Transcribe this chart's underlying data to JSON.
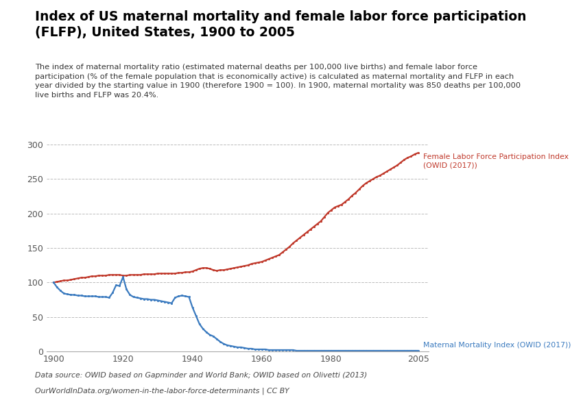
{
  "title": "Index of US maternal mortality and female labor force participation\n(FLFP), United States, 1900 to 2005",
  "subtitle": "The index of maternal mortality ratio (estimated maternal deaths per 100,000 live births) and female labor force\nparticipation (% of the female population that is economically active) is calculated as maternal mortality and FLFP in each\nyear divided by the starting value in 1900 (therefore 1900 = 100). In 1900, maternal mortality was 850 deaths per 100,000\nlive births and FLFP was 20.4%.",
  "datasource": "Data source: OWID based on Gapminder and World Bank; OWID based on Olivetti (2013)",
  "url": "OurWorldInData.org/women-in-the-labor-force-determinants | CC BY",
  "flfp_color": "#c0392b",
  "mortality_color": "#3a7abf",
  "flfp_label": "Female Labor Force Participation Index\n(OWID (2017))",
  "mortality_label": "Maternal Mortality Index (OWID (2017))",
  "ylim": [
    0,
    310
  ],
  "yticks": [
    0,
    50,
    100,
    150,
    200,
    250,
    300
  ],
  "xlim": [
    1898,
    2008
  ],
  "xticks": [
    1900,
    1920,
    1940,
    1960,
    1980,
    2005
  ],
  "owid_box_color": "#1a3a5c",
  "owid_box_red": "#c0392b",
  "flfp_years": [
    1900,
    1901,
    1902,
    1903,
    1904,
    1905,
    1906,
    1907,
    1908,
    1909,
    1910,
    1911,
    1912,
    1913,
    1914,
    1915,
    1916,
    1917,
    1918,
    1919,
    1920,
    1921,
    1922,
    1923,
    1924,
    1925,
    1926,
    1927,
    1928,
    1929,
    1930,
    1931,
    1932,
    1933,
    1934,
    1935,
    1936,
    1937,
    1938,
    1939,
    1940,
    1941,
    1942,
    1943,
    1944,
    1945,
    1946,
    1947,
    1948,
    1949,
    1950,
    1951,
    1952,
    1953,
    1954,
    1955,
    1956,
    1957,
    1958,
    1959,
    1960,
    1961,
    1962,
    1963,
    1964,
    1965,
    1966,
    1967,
    1968,
    1969,
    1970,
    1971,
    1972,
    1973,
    1974,
    1975,
    1976,
    1977,
    1978,
    1979,
    1980,
    1981,
    1982,
    1983,
    1984,
    1985,
    1986,
    1987,
    1988,
    1989,
    1990,
    1991,
    1992,
    1993,
    1994,
    1995,
    1996,
    1997,
    1998,
    1999,
    2000,
    2001,
    2002,
    2003,
    2004,
    2005
  ],
  "flfp_values": [
    100,
    101,
    102,
    103,
    103,
    104,
    105,
    106,
    107,
    107,
    108,
    109,
    109,
    110,
    110,
    110,
    111,
    111,
    111,
    111,
    110,
    110,
    111,
    111,
    111,
    111,
    112,
    112,
    112,
    112,
    113,
    113,
    113,
    113,
    113,
    113,
    114,
    114,
    115,
    115,
    116,
    118,
    120,
    121,
    121,
    120,
    118,
    117,
    118,
    118,
    119,
    120,
    121,
    122,
    123,
    124,
    125,
    127,
    128,
    129,
    130,
    132,
    134,
    136,
    138,
    140,
    144,
    148,
    152,
    157,
    161,
    165,
    169,
    173,
    177,
    181,
    185,
    189,
    195,
    201,
    205,
    209,
    211,
    213,
    217,
    221,
    226,
    230,
    235,
    240,
    244,
    247,
    250,
    253,
    255,
    258,
    261,
    264,
    267,
    270,
    274,
    278,
    281,
    283,
    286,
    288
  ],
  "mortality_years": [
    1900,
    1901,
    1902,
    1903,
    1904,
    1905,
    1906,
    1907,
    1908,
    1909,
    1910,
    1911,
    1912,
    1913,
    1914,
    1915,
    1916,
    1917,
    1918,
    1919,
    1920,
    1921,
    1922,
    1923,
    1924,
    1925,
    1926,
    1927,
    1928,
    1929,
    1930,
    1931,
    1932,
    1933,
    1934,
    1935,
    1936,
    1937,
    1938,
    1939,
    1940,
    1941,
    1942,
    1943,
    1944,
    1945,
    1946,
    1947,
    1948,
    1949,
    1950,
    1951,
    1952,
    1953,
    1954,
    1955,
    1956,
    1957,
    1958,
    1959,
    1960,
    1961,
    1962,
    1963,
    1964,
    1965,
    1966,
    1967,
    1968,
    1969,
    1970,
    1971,
    1972,
    1973,
    1974,
    1975,
    1976,
    1977,
    1978,
    1979,
    1980,
    1981,
    1982,
    1983,
    1984,
    1985,
    1986,
    1987,
    1988,
    1989,
    1990,
    1991,
    1992,
    1993,
    1994,
    1995,
    1996,
    1997,
    1998,
    1999,
    2000,
    2001,
    2002,
    2003,
    2004,
    2005
  ],
  "mortality_values": [
    100,
    93,
    88,
    84,
    83,
    82,
    82,
    81,
    81,
    80,
    80,
    80,
    80,
    79,
    79,
    79,
    78,
    85,
    96,
    95,
    108,
    90,
    82,
    79,
    78,
    77,
    76,
    76,
    75,
    75,
    74,
    73,
    72,
    71,
    70,
    78,
    80,
    81,
    80,
    79,
    64,
    52,
    40,
    33,
    28,
    24,
    22,
    18,
    14,
    11,
    9,
    8,
    7,
    6,
    6,
    5,
    4,
    4,
    3,
    3,
    3,
    3,
    2,
    2,
    2,
    2,
    2,
    2,
    2,
    2,
    1,
    1,
    1,
    1,
    1,
    1,
    1,
    1,
    1,
    1,
    1,
    1,
    1,
    1,
    1,
    1,
    1,
    1,
    1,
    1,
    1,
    1,
    1,
    1,
    1,
    1,
    1,
    1,
    1,
    1,
    1,
    1,
    1,
    1,
    1,
    1
  ]
}
